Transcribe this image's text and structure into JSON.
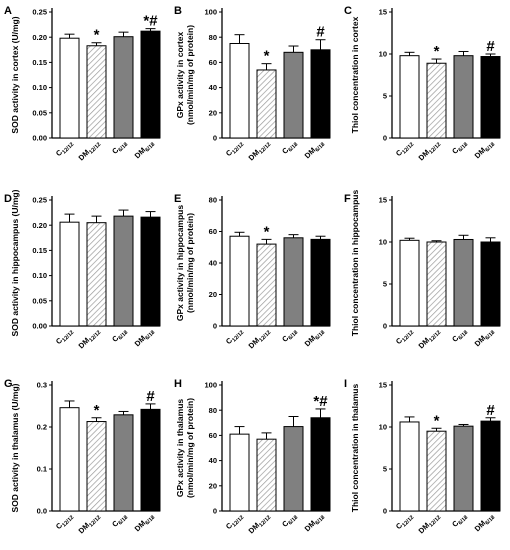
{
  "chart_data": [
    {
      "panel": "A",
      "type": "bar",
      "ylabel": "SOD activity in cortex (U/mg)",
      "ylim": [
        0,
        0.25
      ],
      "yticks": [
        "0.00",
        "0.05",
        "0.10",
        "0.15",
        "0.20",
        "0.25"
      ],
      "categories": [
        "C12/12",
        "DM12/12",
        "C6/18",
        "DM6/18"
      ],
      "values": [
        0.198,
        0.183,
        0.201,
        0.212
      ],
      "errors": [
        0.008,
        0.006,
        0.009,
        0.005
      ],
      "annotations": [
        "",
        "*",
        "",
        "*#"
      ]
    },
    {
      "panel": "B",
      "type": "bar",
      "ylabel": [
        "GPx activity in cortex",
        "(nmol/min/mg of protein)"
      ],
      "ylim": [
        0,
        100
      ],
      "yticks": [
        "0",
        "20",
        "40",
        "60",
        "80",
        "100"
      ],
      "categories": [
        "C12/12",
        "DM12/12",
        "C6/18",
        "DM6/18"
      ],
      "values": [
        75,
        54,
        68,
        70
      ],
      "errors": [
        7,
        5,
        5,
        8
      ],
      "annotations": [
        "",
        "*",
        "",
        "#"
      ]
    },
    {
      "panel": "C",
      "type": "bar",
      "ylabel": "Thiol concentration in cortex",
      "ylim": [
        0,
        15
      ],
      "yticks": [
        "0",
        "5",
        "10",
        "15"
      ],
      "categories": [
        "C12/12",
        "DM12/12",
        "C6/18",
        "DM6/18"
      ],
      "values": [
        9.8,
        8.9,
        9.8,
        9.7
      ],
      "errors": [
        0.4,
        0.5,
        0.5,
        0.3
      ],
      "annotations": [
        "",
        "*",
        "",
        "#"
      ]
    },
    {
      "panel": "D",
      "type": "bar",
      "ylabel": "SOD activity in hippocampus (U/mg)",
      "ylim": [
        0,
        0.25
      ],
      "yticks": [
        "0.00",
        "0.05",
        "0.10",
        "0.15",
        "0.20",
        "0.25"
      ],
      "categories": [
        "C12/12",
        "DM12/12",
        "C6/18",
        "DM6/18"
      ],
      "values": [
        0.206,
        0.205,
        0.218,
        0.216
      ],
      "errors": [
        0.016,
        0.013,
        0.012,
        0.011
      ],
      "annotations": [
        "",
        "",
        "",
        ""
      ]
    },
    {
      "panel": "E",
      "type": "bar",
      "ylabel": [
        "GPx activity in hippocampus",
        "(nmol/min/mg of protein)"
      ],
      "ylim": [
        0,
        80
      ],
      "yticks": [
        "0",
        "20",
        "40",
        "60",
        "80"
      ],
      "categories": [
        "C12/12",
        "DM12/12",
        "C6/18",
        "DM6/18"
      ],
      "values": [
        57,
        52,
        56,
        55
      ],
      "errors": [
        2.5,
        3,
        2,
        2
      ],
      "annotations": [
        "",
        "*",
        "",
        ""
      ]
    },
    {
      "panel": "F",
      "type": "bar",
      "ylabel": "Thiol concentration in hippocampus",
      "ylim": [
        0,
        15
      ],
      "yticks": [
        "0",
        "5",
        "10",
        "15"
      ],
      "categories": [
        "C12/12",
        "DM12/12",
        "C6/18",
        "DM6/18"
      ],
      "values": [
        10.2,
        10.0,
        10.3,
        10.0
      ],
      "errors": [
        0.25,
        0.15,
        0.5,
        0.5
      ],
      "annotations": [
        "",
        "",
        "",
        ""
      ]
    },
    {
      "panel": "G",
      "type": "bar",
      "ylabel": "SOD activity in thalamus (U/mg)",
      "ylim": [
        0,
        0.3
      ],
      "yticks": [
        "0.0",
        "0.1",
        "0.2",
        "0.3"
      ],
      "categories": [
        "C12/12",
        "DM12/12",
        "C6/18",
        "DM6/18"
      ],
      "values": [
        0.246,
        0.213,
        0.229,
        0.242
      ],
      "errors": [
        0.016,
        0.009,
        0.008,
        0.013
      ],
      "annotations": [
        "",
        "*",
        "",
        "#"
      ]
    },
    {
      "panel": "H",
      "type": "bar",
      "ylabel": [
        "GPx activity in thalamus",
        "(nmol/min/mg of protein)"
      ],
      "ylim": [
        0,
        100
      ],
      "yticks": [
        "0",
        "20",
        "40",
        "60",
        "80",
        "100"
      ],
      "categories": [
        "C12/12",
        "DM12/12",
        "C6/18",
        "DM6/18"
      ],
      "values": [
        61,
        57,
        67,
        74
      ],
      "errors": [
        6,
        5,
        8,
        7
      ],
      "annotations": [
        "",
        "",
        "",
        "*#"
      ]
    },
    {
      "panel": "I",
      "type": "bar",
      "ylabel": "Thiol concentration in thalamus",
      "ylim": [
        0,
        15
      ],
      "yticks": [
        "0",
        "5",
        "10",
        "15"
      ],
      "categories": [
        "C12/12",
        "DM12/12",
        "C6/18",
        "DM6/18"
      ],
      "values": [
        10.6,
        9.5,
        10.1,
        10.7
      ],
      "errors": [
        0.6,
        0.35,
        0.2,
        0.4
      ],
      "annotations": [
        "",
        "*",
        "",
        "#"
      ]
    }
  ],
  "category_labels": [
    {
      "main": "C",
      "sub": "12/12"
    },
    {
      "main": "DM",
      "sub": "12/12"
    },
    {
      "main": "C",
      "sub": "6/18"
    },
    {
      "main": "DM",
      "sub": "6/18"
    }
  ],
  "bar_fills": [
    "#ffffff",
    "hatch",
    "#808080",
    "#000000"
  ]
}
